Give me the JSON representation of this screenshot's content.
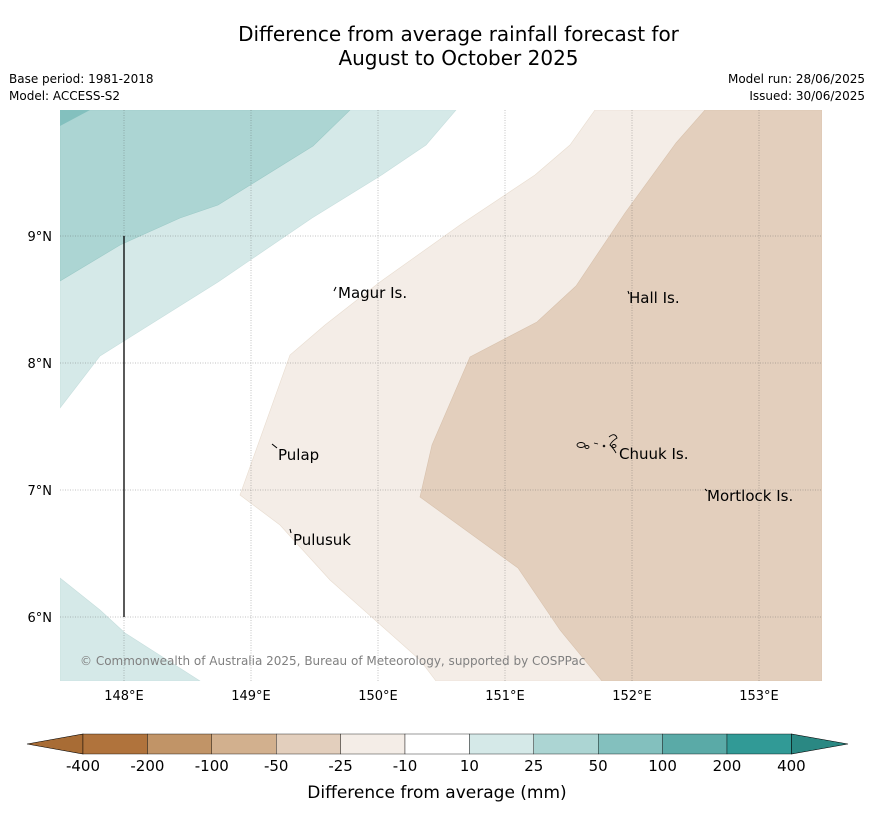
{
  "title_line1": "Difference from average rainfall forecast for",
  "title_line2": "August to October 2025",
  "base_period": "Base period: 1981-2018",
  "model": "Model: ACCESS-S2",
  "model_run": "Model run: 28/06/2025",
  "issued": "Issued: 30/06/2025",
  "map": {
    "lat_labels": [
      "9°N",
      "8°N",
      "7°N",
      "6°N"
    ],
    "lon_labels": [
      "148°E",
      "149°E",
      "150°E",
      "151°E",
      "152°E",
      "153°E"
    ],
    "places": [
      "Magur Is.",
      "Hall Is.",
      "Pulap",
      "Chuuk Is.",
      "Mortlock Is.",
      "Pulusuk"
    ],
    "credit": "© Commonwealth of Australia 2025, Bureau of Meteorology, supported by COSPPac"
  },
  "colorbar": {
    "ticks": [
      "-400",
      "-200",
      "-100",
      "-50",
      "-25",
      "-10",
      "10",
      "25",
      "50",
      "100",
      "200",
      "400"
    ],
    "colors": [
      "#a86c35",
      "#b0733c",
      "#c19467",
      "#d2b08e",
      "#e3cfbd",
      "#f4ede7",
      "#ffffff",
      "#d5e9e8",
      "#acd5d3",
      "#83c0be",
      "#5aaaa7",
      "#319a96",
      "#2a8883"
    ],
    "label": "Difference from average (mm)"
  }
}
